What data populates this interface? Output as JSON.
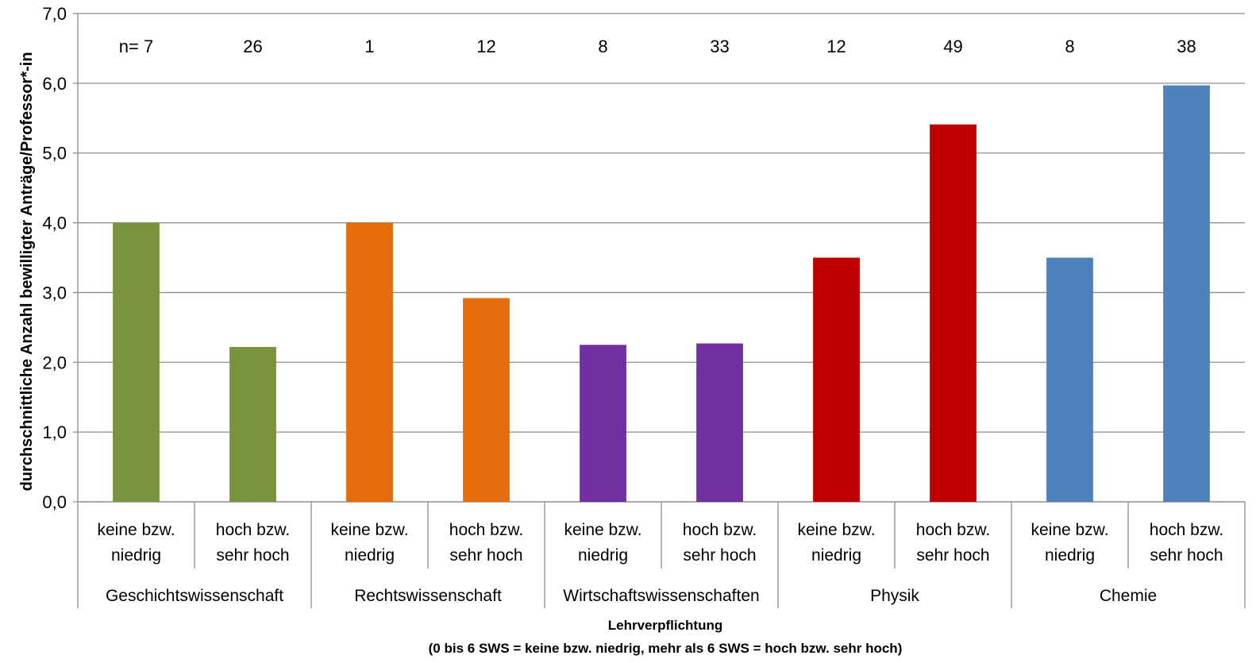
{
  "chart_data": {
    "type": "bar",
    "ylabel": "durchschnittliche Anzahl bewilligter Anträge/Professor*-in",
    "xlabel": "Lehrverpflichtung",
    "xlabel_note": "(0 bis 6 SWS = keine bzw. niedrig, mehr als 6 SWS = hoch bzw. sehr hoch)",
    "ylim": [
      0,
      7
    ],
    "ytick_labels": [
      "0,0",
      "1,0",
      "2,0",
      "3,0",
      "4,0",
      "5,0",
      "6,0",
      "7,0"
    ],
    "grid": true,
    "legend": "none",
    "n_prefix": "n= ",
    "groups": [
      {
        "name": "Geschichtswissenschaft",
        "color": "#77933c",
        "bars": [
          {
            "label_line1": "keine bzw.",
            "label_line2": "niedrig",
            "value": 4.0,
            "n": "7"
          },
          {
            "label_line1": "hoch bzw.",
            "label_line2": "sehr hoch",
            "value": 2.22,
            "n": "26"
          }
        ]
      },
      {
        "name": "Rechtswissenschaft",
        "color": "#e46c0a",
        "bars": [
          {
            "label_line1": "keine bzw.",
            "label_line2": "niedrig",
            "value": 4.0,
            "n": "1"
          },
          {
            "label_line1": "hoch bzw.",
            "label_line2": "sehr hoch",
            "value": 2.92,
            "n": "12"
          }
        ]
      },
      {
        "name": "Wirtschaftswissenschaften",
        "color": "#7030a0",
        "bars": [
          {
            "label_line1": "keine bzw.",
            "label_line2": "niedrig",
            "value": 2.25,
            "n": "8"
          },
          {
            "label_line1": "hoch bzw.",
            "label_line2": "sehr hoch",
            "value": 2.27,
            "n": "33"
          }
        ]
      },
      {
        "name": "Physik",
        "color": "#c00000",
        "bars": [
          {
            "label_line1": "keine bzw.",
            "label_line2": "niedrig",
            "value": 3.5,
            "n": "12"
          },
          {
            "label_line1": "hoch bzw.",
            "label_line2": "sehr hoch",
            "value": 5.41,
            "n": "49"
          }
        ]
      },
      {
        "name": "Chemie",
        "color": "#4f81bd",
        "bars": [
          {
            "label_line1": "keine bzw.",
            "label_line2": "niedrig",
            "value": 3.5,
            "n": "8"
          },
          {
            "label_line1": "hoch bzw.",
            "label_line2": "sehr hoch",
            "value": 5.97,
            "n": "38"
          }
        ]
      }
    ]
  }
}
